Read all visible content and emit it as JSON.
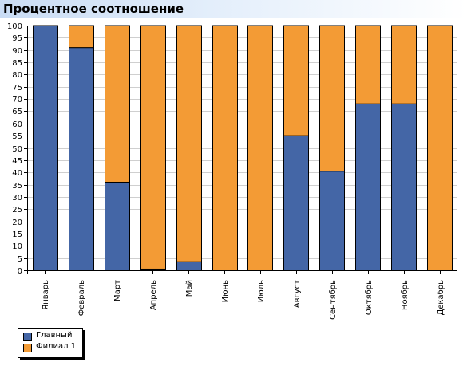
{
  "title": "Процентное соотношение",
  "chart_data": {
    "type": "bar",
    "stacked": true,
    "title": "Процентное соотношение",
    "categories": [
      "Январь",
      "Февраль",
      "Март",
      "Апрель",
      "Май",
      "Июнь",
      "Июль",
      "Август",
      "Сентябрь",
      "Октябрь",
      "Ноябрь",
      "Декабрь"
    ],
    "series": [
      {
        "name": "Главный",
        "color": "#4466a6",
        "values": [
          100,
          91,
          36,
          0.5,
          3.5,
          0,
          0,
          55,
          40.5,
          68,
          68,
          0
        ]
      },
      {
        "name": "Филиал 1",
        "color": "#f39b35",
        "values": [
          0,
          9,
          64,
          99.5,
          96.5,
          100,
          100,
          45,
          59.5,
          32,
          32,
          100
        ]
      }
    ],
    "ylim": [
      0,
      100
    ],
    "ytick_step": 5,
    "grid": true,
    "legend_position": "bottom-left"
  }
}
